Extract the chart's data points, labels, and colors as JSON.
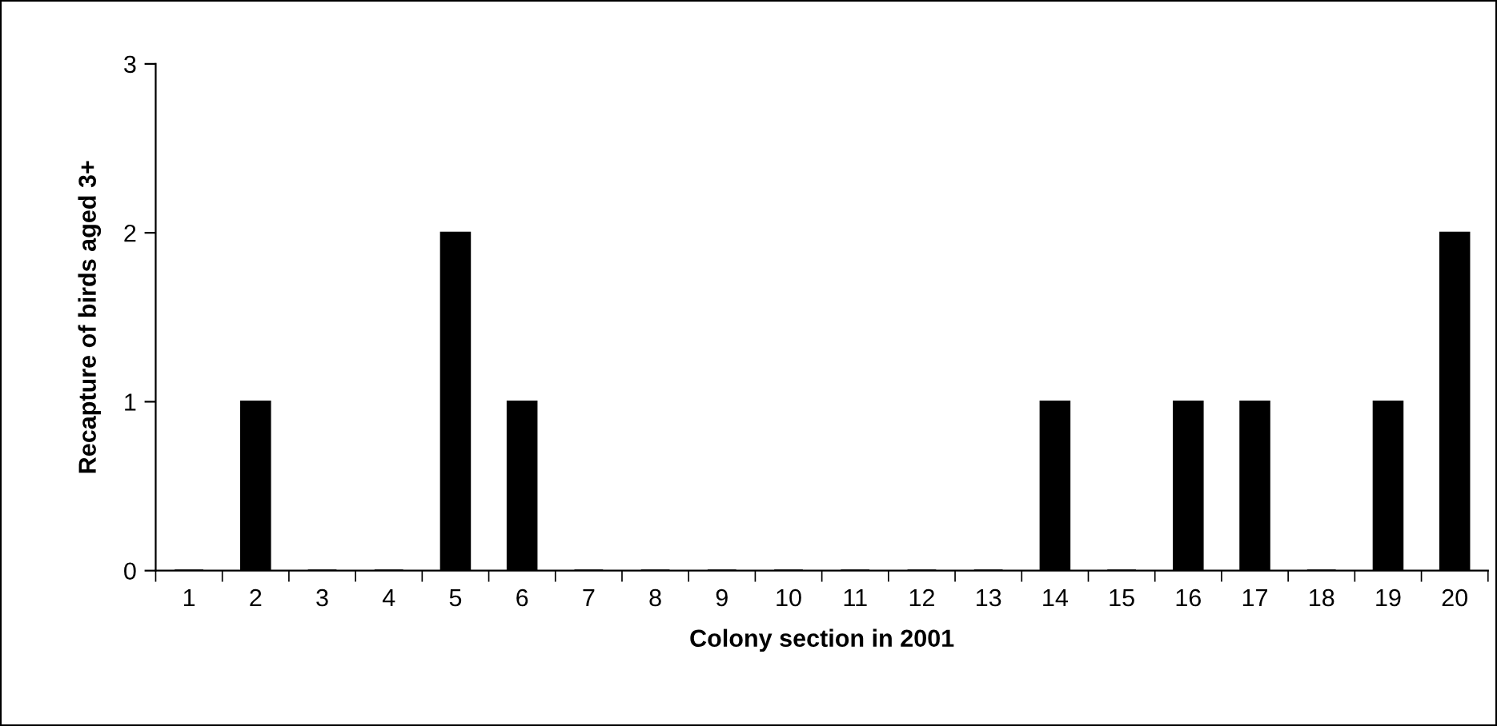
{
  "chart_data": {
    "type": "bar",
    "xlabel": "Colony section in 2001",
    "ylabel": "Recapture of birds aged 3+",
    "categories": [
      "1",
      "2",
      "3",
      "4",
      "5",
      "6",
      "7",
      "8",
      "9",
      "10",
      "11",
      "12",
      "13",
      "14",
      "15",
      "16",
      "17",
      "18",
      "19",
      "20"
    ],
    "values": [
      0,
      1,
      0,
      0,
      2,
      1,
      0,
      0,
      0,
      0,
      0,
      0,
      0,
      1,
      0,
      1,
      1,
      0,
      1,
      2
    ],
    "color": "#000000",
    "ylim": [
      0,
      3
    ],
    "yticks": [
      0,
      1,
      2,
      3
    ],
    "grid": false,
    "legend": false
  }
}
